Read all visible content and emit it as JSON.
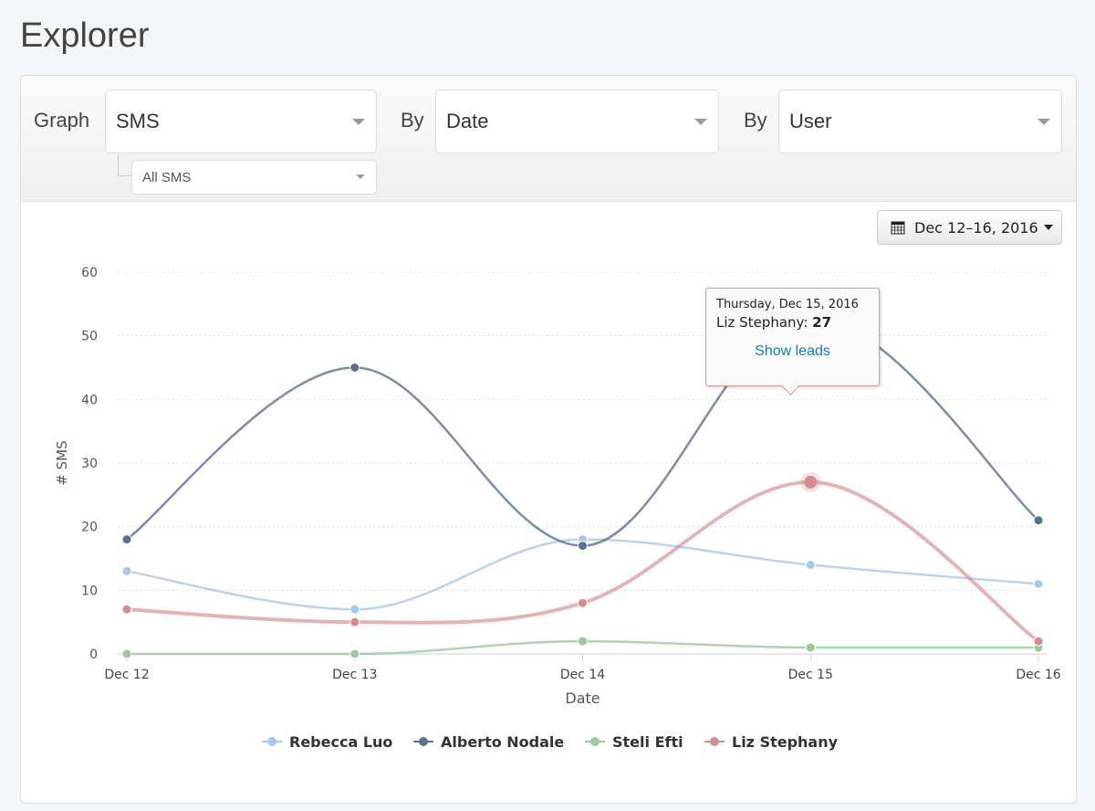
{
  "page_title": "Explorer",
  "controls": {
    "graph_label": "Graph",
    "graph_value": "SMS",
    "sub_value": "All SMS",
    "by1_label": "By",
    "by1_value": "Date",
    "by2_label": "By",
    "by2_value": "User",
    "date_range": "Dec 12–16, 2016"
  },
  "tooltip": {
    "date": "Thursday, Dec 15, 2016",
    "series": "Liz Stephany",
    "value": "27",
    "link": "Show leads"
  },
  "chart_data": {
    "type": "line",
    "xlabel": "Date",
    "ylabel": "# SMS",
    "categories": [
      "Dec 12",
      "Dec 13",
      "Dec 14",
      "Dec 15",
      "Dec 16"
    ],
    "ylim": [
      0,
      60
    ],
    "yticks": [
      0,
      10,
      20,
      30,
      40,
      50,
      60
    ],
    "grid": true,
    "legend": "bottom",
    "smooth": true,
    "series": [
      {
        "name": "Rebecca Luo",
        "color": "#a8c8e8",
        "values": [
          13,
          7,
          18,
          14,
          11
        ]
      },
      {
        "name": "Alberto Nodale",
        "color": "#5a7090",
        "values": [
          18,
          45,
          17,
          53,
          21
        ]
      },
      {
        "name": "Steli Efti",
        "color": "#9cc89c",
        "values": [
          0,
          0,
          2,
          1,
          1
        ]
      },
      {
        "name": "Liz Stephany",
        "color": "#d48c8c",
        "values": [
          7,
          5,
          8,
          27,
          2
        ]
      }
    ]
  }
}
